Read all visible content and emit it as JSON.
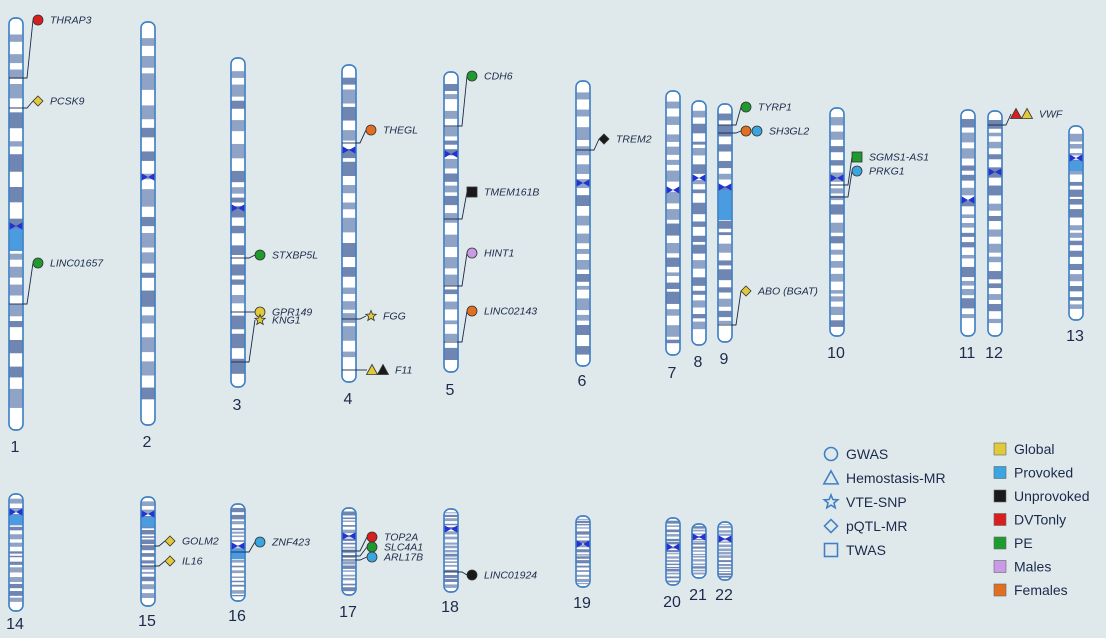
{
  "chromosomes": [
    {
      "id": "1",
      "label": "1"
    },
    {
      "id": "2",
      "label": "2"
    },
    {
      "id": "3",
      "label": "3"
    },
    {
      "id": "4",
      "label": "4"
    },
    {
      "id": "5",
      "label": "5"
    },
    {
      "id": "6",
      "label": "6"
    },
    {
      "id": "7",
      "label": "7"
    },
    {
      "id": "8",
      "label": "8"
    },
    {
      "id": "9",
      "label": "9"
    },
    {
      "id": "10",
      "label": "10"
    },
    {
      "id": "11",
      "label": "11"
    },
    {
      "id": "12",
      "label": "12"
    },
    {
      "id": "13",
      "label": "13"
    },
    {
      "id": "14",
      "label": "14"
    },
    {
      "id": "15",
      "label": "15"
    },
    {
      "id": "16",
      "label": "16"
    },
    {
      "id": "17",
      "label": "17"
    },
    {
      "id": "18",
      "label": "18"
    },
    {
      "id": "19",
      "label": "19"
    },
    {
      "id": "20",
      "label": "20"
    },
    {
      "id": "21",
      "label": "21"
    },
    {
      "id": "22",
      "label": "22"
    }
  ],
  "genes": [
    {
      "name": "THRAP3",
      "chromosome": "1",
      "shapes": [
        [
          "circle",
          "dvtonly"
        ]
      ]
    },
    {
      "name": "PCSK9",
      "chromosome": "1",
      "shapes": [
        [
          "diamond",
          "global"
        ]
      ]
    },
    {
      "name": "LINC01657",
      "chromosome": "1",
      "shapes": [
        [
          "circle",
          "pe"
        ]
      ]
    },
    {
      "name": "STXBP5L",
      "chromosome": "3",
      "shapes": [
        [
          "circle",
          "pe"
        ]
      ]
    },
    {
      "name": "GPR149",
      "chromosome": "3",
      "shapes": [
        [
          "circle",
          "global"
        ]
      ]
    },
    {
      "name": "KNG1",
      "chromosome": "3",
      "shapes": [
        [
          "star",
          "global"
        ]
      ]
    },
    {
      "name": "THEGL",
      "chromosome": "4",
      "shapes": [
        [
          "circle",
          "females"
        ]
      ]
    },
    {
      "name": "FGG",
      "chromosome": "4",
      "shapes": [
        [
          "star",
          "global"
        ]
      ]
    },
    {
      "name": "F11",
      "chromosome": "4",
      "shapes": [
        [
          "triangle",
          "global"
        ],
        [
          "triangle",
          "unprovoked"
        ]
      ]
    },
    {
      "name": "CDH6",
      "chromosome": "5",
      "shapes": [
        [
          "circle",
          "pe"
        ]
      ]
    },
    {
      "name": "TMEM161B",
      "chromosome": "5",
      "shapes": [
        [
          "square",
          "unprovoked"
        ]
      ]
    },
    {
      "name": "HINT1",
      "chromosome": "5",
      "shapes": [
        [
          "circle",
          "males"
        ]
      ]
    },
    {
      "name": "LINC02143",
      "chromosome": "5",
      "shapes": [
        [
          "circle",
          "females"
        ]
      ]
    },
    {
      "name": "TREM2",
      "chromosome": "6",
      "shapes": [
        [
          "diamond",
          "unprovoked"
        ]
      ]
    },
    {
      "name": "TYRP1",
      "chromosome": "9",
      "shapes": [
        [
          "circle",
          "pe"
        ]
      ]
    },
    {
      "name": "SH3GL2",
      "chromosome": "9",
      "shapes": [
        [
          "circle",
          "females"
        ],
        [
          "circle",
          "provoked"
        ]
      ]
    },
    {
      "name": "ABO (BGAT)",
      "chromosome": "9",
      "shapes": [
        [
          "diamond",
          "global"
        ]
      ]
    },
    {
      "name": "SGMS1-AS1",
      "chromosome": "10",
      "shapes": [
        [
          "square",
          "pe"
        ]
      ]
    },
    {
      "name": "PRKG1",
      "chromosome": "10",
      "shapes": [
        [
          "circle",
          "provoked"
        ]
      ]
    },
    {
      "name": "VWF",
      "chromosome": "12",
      "shapes": [
        [
          "triangle",
          "dvtonly"
        ],
        [
          "triangle",
          "global"
        ]
      ]
    },
    {
      "name": "GOLM2",
      "chromosome": "15",
      "shapes": [
        [
          "diamond",
          "global"
        ]
      ]
    },
    {
      "name": "IL16",
      "chromosome": "15",
      "shapes": [
        [
          "diamond",
          "global"
        ]
      ]
    },
    {
      "name": "ZNF423",
      "chromosome": "16",
      "shapes": [
        [
          "circle",
          "provoked"
        ]
      ]
    },
    {
      "name": "TOP2A",
      "chromosome": "17",
      "shapes": [
        [
          "circle",
          "dvtonly"
        ]
      ]
    },
    {
      "name": "SLC4A1",
      "chromosome": "17",
      "shapes": [
        [
          "circle",
          "pe"
        ]
      ]
    },
    {
      "name": "ARL17B",
      "chromosome": "17",
      "shapes": [
        [
          "circle",
          "provoked"
        ]
      ]
    },
    {
      "name": "LINC01924",
      "chromosome": "18",
      "shapes": [
        [
          "circle",
          "unprovoked"
        ]
      ]
    }
  ],
  "legend_methods": [
    {
      "shape": "circle",
      "label": "GWAS"
    },
    {
      "shape": "triangle",
      "label": "Hemostasis-MR"
    },
    {
      "shape": "star",
      "label": "VTE-SNP"
    },
    {
      "shape": "diamond",
      "label": "pQTL-MR"
    },
    {
      "shape": "square",
      "label": "TWAS"
    }
  ],
  "legend_groups": [
    {
      "key": "global",
      "label": "Global"
    },
    {
      "key": "provoked",
      "label": "Provoked"
    },
    {
      "key": "unprovoked",
      "label": "Unprovoked"
    },
    {
      "key": "dvtonly",
      "label": "DVTonly"
    },
    {
      "key": "pe",
      "label": "PE"
    },
    {
      "key": "males",
      "label": "Males"
    },
    {
      "key": "females",
      "label": "Females"
    }
  ],
  "colors": {
    "global": "#e2c93a",
    "provoked": "#3aa6e0",
    "unprovoked": "#1a1a1a",
    "dvtonly": "#d81e1e",
    "pe": "#1f9a2e",
    "males": "#c99be6",
    "females": "#e06f22",
    "chromosome_outline": "#3f7fc4",
    "centromere": "#2432d1"
  }
}
